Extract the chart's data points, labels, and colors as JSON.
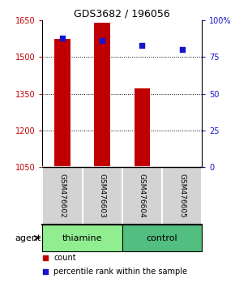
{
  "title": "GDS3682 / 196056",
  "samples": [
    "GSM476602",
    "GSM476603",
    "GSM476604",
    "GSM476605"
  ],
  "groups": [
    "thiamine",
    "thiamine",
    "control",
    "control"
  ],
  "group_colors": {
    "thiamine": "#90EE90",
    "control": "#52BE80"
  },
  "bar_bottom": 1050,
  "red_values": [
    1572,
    1638,
    1372,
    1053
  ],
  "blue_pct": [
    88,
    86,
    83,
    80
  ],
  "ylim_left": [
    1050,
    1650
  ],
  "ylim_right": [
    0,
    100
  ],
  "yticks_left": [
    1050,
    1200,
    1350,
    1500,
    1650
  ],
  "yticks_right": [
    0,
    25,
    50,
    75,
    100
  ],
  "yticklabels_right": [
    "0",
    "25",
    "50",
    "75",
    "100%"
  ],
  "bar_color": "#C00000",
  "dot_color": "#1414CC",
  "bg_plot": "#ffffff",
  "bg_label": "#d3d3d3",
  "bar_width": 0.4,
  "agent_label": "agent",
  "legend_count": "count",
  "legend_pct": "percentile rank within the sample"
}
